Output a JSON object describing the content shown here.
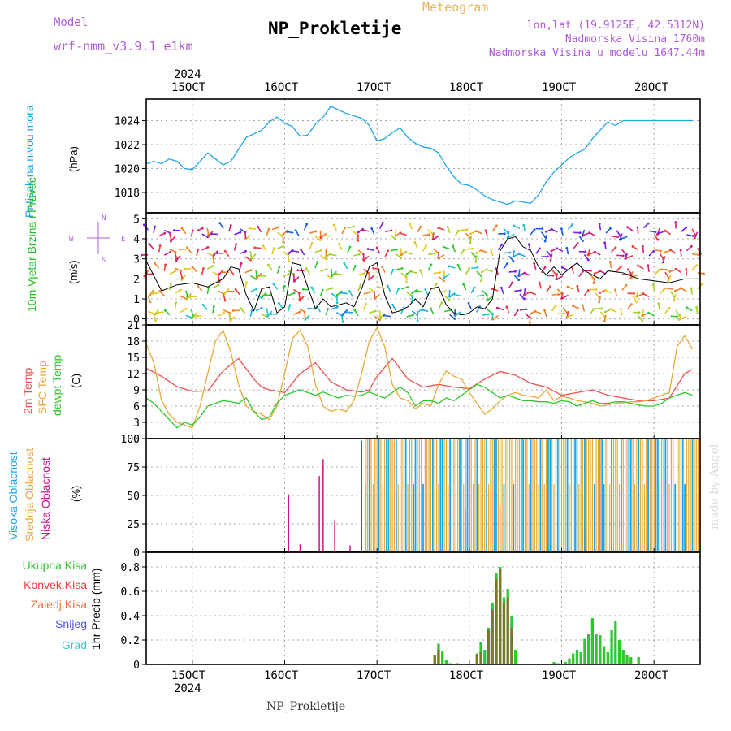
{
  "header": {
    "model_label": "Model",
    "model_name": "wrf-nmm_v3.9.1  e1km",
    "station": "NP_Prokletije",
    "meteogram": "Meteogram",
    "lonlat": "lon,lat (19.9125E, 42.5312N)",
    "elevation": "Nadmorska Visina 1760m",
    "model_elevation": "Nadmorska Visina u modelu 1647.44m"
  },
  "axes": {
    "year": "2024",
    "day_labels": [
      "15OCT",
      "16OCT",
      "17OCT",
      "18OCT",
      "19OCT",
      "20OCT"
    ],
    "watermark": "made by Angel",
    "footer": "NP_Prokletije"
  },
  "chart_data": [
    {
      "type": "line",
      "panel": "pressure",
      "ylabel": "Pritisak na nivou mora",
      "unit": "(hPa)",
      "x_unit": "hours from 2024-10-14 12:00",
      "yticks": [
        1018,
        1020,
        1022,
        1024
      ],
      "ylim": [
        1016.3,
        1025.8
      ],
      "grid": true,
      "series": [
        {
          "color": "#1ea5e6",
          "x": [
            0,
            2,
            4,
            6,
            8,
            10,
            12,
            14,
            16,
            18,
            20,
            22,
            24,
            26,
            28,
            30,
            32,
            34,
            36,
            38,
            40,
            42,
            44,
            46,
            48,
            50,
            52,
            54,
            56,
            58,
            60,
            62,
            64,
            66,
            68,
            70,
            72,
            74,
            76,
            78,
            80,
            82,
            84,
            86,
            88,
            90,
            92,
            94,
            96,
            98,
            100,
            102,
            104,
            106,
            108,
            110,
            112,
            114,
            116,
            118,
            120,
            122,
            124,
            126,
            128,
            130,
            132,
            134,
            136,
            138,
            140,
            142
          ],
          "values": [
            1020.4,
            1020.6,
            1020.4,
            1020.8,
            1020.6,
            1020.0,
            1019.9,
            1020.6,
            1021.3,
            1020.8,
            1020.3,
            1020.6,
            1021.6,
            1022.6,
            1022.9,
            1023.2,
            1023.9,
            1024.3,
            1023.8,
            1023.5,
            1022.7,
            1022.8,
            1023.7,
            1024.3,
            1025.2,
            1024.9,
            1024.6,
            1024.4,
            1024.2,
            1023.6,
            1022.3,
            1022.5,
            1023.0,
            1023.4,
            1022.6,
            1022.1,
            1021.8,
            1021.7,
            1021.3,
            1020.2,
            1019.3,
            1018.7,
            1018.6,
            1018.2,
            1017.7,
            1017.4,
            1017.2,
            1017.0,
            1017.3,
            1017.2,
            1017.1,
            1017.8,
            1018.9,
            1019.7,
            1020.3,
            1020.9,
            1021.3,
            1021.6,
            1022.5,
            1023.2,
            1023.9,
            1023.6,
            1024.0,
            1024.0,
            1024.0,
            1024.0,
            1024.0,
            1024.0,
            1024.0,
            1024.0,
            1024.0,
            1024.0
          ]
        }
      ]
    },
    {
      "type": "line",
      "panel": "wind",
      "ylabel": "10m Vjetar Brzina i Pravac",
      "unit": "(m/s)",
      "compass": {
        "n": "N",
        "s": "S",
        "w": "W",
        "e": "E"
      },
      "yticks": [
        0,
        1,
        2,
        3,
        4,
        5
      ],
      "ylim": [
        -0.3,
        5.3
      ],
      "grid": true,
      "speed_hours": [
        0,
        4,
        8,
        12,
        16,
        20,
        22,
        24,
        26,
        28,
        30,
        32,
        34,
        36,
        38,
        40,
        42,
        44,
        46,
        48,
        50,
        52,
        54,
        56,
        58,
        60,
        62,
        64,
        66,
        68,
        70,
        72,
        74,
        76,
        78,
        80,
        82,
        84,
        86,
        88,
        90,
        92,
        94,
        96,
        98,
        100,
        102,
        104,
        106,
        108,
        110,
        112,
        114,
        116,
        118,
        120,
        124,
        128,
        132,
        136,
        140,
        144
      ],
      "speed": [
        2.9,
        1.4,
        1.7,
        1.8,
        1.6,
        2.0,
        2.6,
        2.5,
        1.2,
        0.4,
        1.5,
        1.6,
        0.3,
        0.6,
        2.8,
        2.7,
        1.6,
        0.5,
        1.0,
        0.6,
        0.7,
        0.8,
        0.6,
        1.5,
        2.6,
        2.8,
        1.2,
        0.3,
        0.4,
        0.6,
        1.0,
        0.6,
        1.5,
        1.6,
        0.7,
        0.3,
        0.2,
        0.3,
        0.6,
        0.5,
        1.0,
        3.4,
        4.0,
        4.1,
        3.6,
        3.4,
        2.6,
        2.2,
        2.6,
        2.2,
        2.5,
        2.8,
        2.4,
        2.2,
        2.0,
        2.4,
        2.3,
        2.0,
        1.9,
        1.8,
        2.0,
        2.0
      ]
    },
    {
      "type": "line",
      "panel": "temperature",
      "ylabel": [
        "2m Temp",
        "SFC Temp",
        "dewpt Temp"
      ],
      "unit": "(C)",
      "yticks": [
        0,
        3,
        6,
        9,
        12,
        15,
        18,
        21
      ],
      "ylim": [
        0,
        21
      ],
      "grid": true,
      "series": [
        {
          "name": "2m Temp",
          "color": "#f05050",
          "x": [
            0,
            4,
            8,
            12,
            16,
            20,
            24,
            28,
            30,
            32,
            36,
            40,
            44,
            48,
            52,
            56,
            58,
            60,
            64,
            68,
            72,
            76,
            80,
            84,
            88,
            92,
            96,
            100,
            104,
            108,
            112,
            116,
            120,
            124,
            128,
            132,
            136,
            140,
            142
          ],
          "values": [
            13.0,
            11.5,
            9.6,
            8.7,
            8.8,
            12.5,
            14.8,
            11.0,
            9.5,
            9.0,
            8.5,
            12.0,
            14.0,
            10.5,
            9.0,
            8.6,
            9.0,
            11.5,
            14.8,
            11.0,
            9.5,
            10.0,
            9.5,
            9.2,
            11.0,
            12.4,
            11.7,
            10.2,
            9.5,
            8.0,
            8.5,
            9.0,
            8.0,
            7.5,
            7.0,
            7.0,
            7.5,
            12.0,
            12.8
          ]
        },
        {
          "name": "SFC Temp",
          "color": "#e8a838",
          "x": [
            0,
            2,
            4,
            6,
            8,
            10,
            12,
            14,
            16,
            18,
            20,
            22,
            24,
            26,
            28,
            30,
            32,
            34,
            36,
            38,
            40,
            42,
            44,
            46,
            48,
            50,
            52,
            54,
            56,
            58,
            60,
            62,
            64,
            66,
            68,
            70,
            72,
            74,
            76,
            78,
            80,
            82,
            84,
            86,
            88,
            90,
            92,
            94,
            96,
            98,
            100,
            102,
            104,
            106,
            108,
            110,
            112,
            114,
            116,
            118,
            120,
            122,
            124,
            126,
            128,
            130,
            132,
            134,
            136,
            138,
            140,
            142
          ],
          "values": [
            17.5,
            14.0,
            7.0,
            4.5,
            3.0,
            2.5,
            2.0,
            6.0,
            12.0,
            18.0,
            20.0,
            16.0,
            10.0,
            6.0,
            5.0,
            4.5,
            3.5,
            6.0,
            12.0,
            18.5,
            20.0,
            17.0,
            10.0,
            6.0,
            5.0,
            5.5,
            5.0,
            7.0,
            12.0,
            18.0,
            20.5,
            17.0,
            10.0,
            7.5,
            7.0,
            5.5,
            6.5,
            6.0,
            10.0,
            12.5,
            11.5,
            11.0,
            8.5,
            6.5,
            4.5,
            5.5,
            7.0,
            8.0,
            8.5,
            8.0,
            7.8,
            7.5,
            9.0,
            7.0,
            7.8,
            7.5,
            7.0,
            6.8,
            6.5,
            6.0,
            6.2,
            6.5,
            6.6,
            6.8,
            6.8,
            7.0,
            7.5,
            8.0,
            8.5,
            17.0,
            19.0,
            16.5
          ]
        },
        {
          "name": "dewpt Temp",
          "color": "#2ec82e",
          "x": [
            0,
            2,
            4,
            6,
            8,
            10,
            12,
            14,
            16,
            18,
            20,
            22,
            24,
            26,
            28,
            30,
            32,
            34,
            36,
            38,
            40,
            42,
            44,
            46,
            48,
            50,
            52,
            54,
            56,
            58,
            60,
            62,
            64,
            66,
            68,
            70,
            72,
            74,
            76,
            78,
            80,
            82,
            84,
            86,
            88,
            90,
            92,
            94,
            96,
            98,
            100,
            102,
            104,
            106,
            108,
            110,
            112,
            114,
            116,
            118,
            120,
            122,
            124,
            126,
            128,
            130,
            132,
            134,
            136,
            138,
            140,
            142
          ],
          "values": [
            7.5,
            6.5,
            5.0,
            3.5,
            2.0,
            3.0,
            2.5,
            4.0,
            6.0,
            6.5,
            7.0,
            6.8,
            6.5,
            7.5,
            5.0,
            3.5,
            4.0,
            6.5,
            8.0,
            8.5,
            9.0,
            8.5,
            8.0,
            8.6,
            8.0,
            7.5,
            8.0,
            7.8,
            8.0,
            8.6,
            8.0,
            7.5,
            8.5,
            9.5,
            8.5,
            6.0,
            7.0,
            7.0,
            6.5,
            7.5,
            7.0,
            8.0,
            9.0,
            10.0,
            9.5,
            8.5,
            7.5,
            8.0,
            7.5,
            7.0,
            7.0,
            6.8,
            6.8,
            6.5,
            7.0,
            6.8,
            6.0,
            6.5,
            7.0,
            6.5,
            6.5,
            6.8,
            6.8,
            6.5,
            6.2,
            6.0,
            6.0,
            6.5,
            7.5,
            8.0,
            8.5,
            8.0
          ]
        }
      ]
    },
    {
      "type": "bar",
      "panel": "cloudiness",
      "ylabel": [
        "Visoka Oblacnost",
        "Srednja Oblacnost",
        "Niska Oblacnost"
      ],
      "unit": "(%)",
      "yticks": [
        0,
        25,
        50,
        75,
        100
      ],
      "ylim": [
        0,
        100
      ],
      "grid": true,
      "series": [
        {
          "name": "Visoka Oblacnost",
          "color": "#1ea5e6"
        },
        {
          "name": "Srednja Oblacnost",
          "color": "#e8a838"
        },
        {
          "name": "Niska Oblacnost",
          "color": "#c8148c"
        }
      ],
      "low_cloud_spikes": [
        {
          "x": 37,
          "value": 51
        },
        {
          "x": 40,
          "value": 7
        },
        {
          "x": 45,
          "value": 67
        },
        {
          "x": 46,
          "value": 82
        },
        {
          "x": 49,
          "value": 28
        },
        {
          "x": 53,
          "value": 6
        },
        {
          "x": 56,
          "value": 98
        },
        {
          "x": 57,
          "value": 60
        },
        {
          "x": 83,
          "value": 38
        },
        {
          "x": 92,
          "value": 40
        },
        {
          "x": 114,
          "value": 20
        },
        {
          "x": 118,
          "value": 100
        }
      ],
      "dense_from_hour": 57
    },
    {
      "type": "bar",
      "panel": "precipitation",
      "ylabel": "1hr Precip",
      "unit": "(mm)",
      "yticks": [
        0,
        0.2,
        0.4,
        0.6,
        0.8
      ],
      "ylim": [
        0,
        0.92
      ],
      "grid": true,
      "legend": [
        {
          "name": "Ukupna Kisa",
          "color": "#2ec82e"
        },
        {
          "name": "Konvek.Kisa",
          "color": "#f03c3c"
        },
        {
          "name": "Zaledj.Kisa",
          "color": "#f0783c"
        },
        {
          "name": "Snijeg",
          "color": "#5050e6"
        },
        {
          "name": "Grad",
          "color": "#3cc8c8"
        }
      ],
      "bars": [
        {
          "x": 75,
          "total": 0.08,
          "conv": 0.08
        },
        {
          "x": 76,
          "total": 0.17,
          "conv": 0.12
        },
        {
          "x": 77,
          "total": 0.11,
          "conv": 0.0
        },
        {
          "x": 78,
          "total": 0.04,
          "conv": 0.0
        },
        {
          "x": 79,
          "total": 0.01,
          "conv": 0.0
        },
        {
          "x": 81,
          "total": 0.01,
          "conv": 0.0
        },
        {
          "x": 86,
          "total": 0.09,
          "conv": 0.08
        },
        {
          "x": 87,
          "total": 0.18,
          "conv": 0.1
        },
        {
          "x": 88,
          "total": 0.12,
          "conv": 0.0
        },
        {
          "x": 89,
          "total": 0.3,
          "conv": 0.28
        },
        {
          "x": 90,
          "total": 0.5,
          "conv": 0.45
        },
        {
          "x": 91,
          "total": 0.75,
          "conv": 0.7
        },
        {
          "x": 92,
          "total": 0.8,
          "conv": 0.78
        },
        {
          "x": 93,
          "total": 0.55,
          "conv": 0.5
        },
        {
          "x": 94,
          "total": 0.62,
          "conv": 0.55
        },
        {
          "x": 95,
          "total": 0.4,
          "conv": 0.3
        },
        {
          "x": 96,
          "total": 0.12,
          "conv": 0.0
        },
        {
          "x": 106,
          "total": 0.02,
          "conv": 0.0
        },
        {
          "x": 107,
          "total": 0.01,
          "conv": 0.0
        },
        {
          "x": 109,
          "total": 0.02,
          "conv": 0.0
        },
        {
          "x": 110,
          "total": 0.05,
          "conv": 0.0
        },
        {
          "x": 111,
          "total": 0.09,
          "conv": 0.0
        },
        {
          "x": 112,
          "total": 0.12,
          "conv": 0.0
        },
        {
          "x": 113,
          "total": 0.1,
          "conv": 0.0
        },
        {
          "x": 114,
          "total": 0.21,
          "conv": 0.0
        },
        {
          "x": 115,
          "total": 0.25,
          "conv": 0.0
        },
        {
          "x": 116,
          "total": 0.38,
          "conv": 0.0
        },
        {
          "x": 117,
          "total": 0.25,
          "conv": 0.0
        },
        {
          "x": 118,
          "total": 0.24,
          "conv": 0.0
        },
        {
          "x": 119,
          "total": 0.15,
          "conv": 0.0
        },
        {
          "x": 120,
          "total": 0.1,
          "conv": 0.0
        },
        {
          "x": 121,
          "total": 0.28,
          "conv": 0.0
        },
        {
          "x": 122,
          "total": 0.36,
          "conv": 0.0
        },
        {
          "x": 123,
          "total": 0.2,
          "conv": 0.0
        },
        {
          "x": 124,
          "total": 0.12,
          "conv": 0.0
        },
        {
          "x": 125,
          "total": 0.08,
          "conv": 0.0
        },
        {
          "x": 126,
          "total": 0.06,
          "conv": 0.0
        },
        {
          "x": 128,
          "total": 0.06,
          "conv": 0.0
        }
      ]
    }
  ]
}
